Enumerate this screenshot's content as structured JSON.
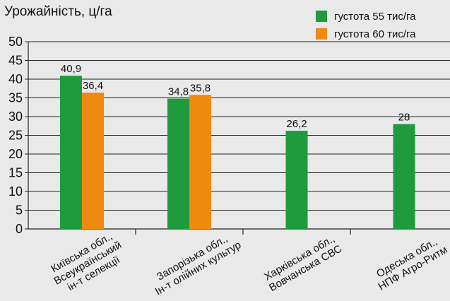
{
  "chart_data": {
    "type": "bar",
    "ylabel": "Урожайність, ц/га",
    "ylim": [
      0,
      50
    ],
    "yticks": [
      0,
      5,
      10,
      15,
      20,
      25,
      30,
      35,
      40,
      45,
      50
    ],
    "grid": true,
    "legend_position": "top-right",
    "categories": [
      [
        "Київська обл.,",
        "Всеукраїнський",
        "ін-т селекції"
      ],
      [
        "Запорізька обл.,",
        "Ін-т олійних культур"
      ],
      [
        "Харківська обл.,",
        "Вовчанська СВС"
      ],
      [
        "Одеська обл.,",
        "НПФ Агро-Ритм"
      ]
    ],
    "series": [
      {
        "name": "густота 55 тис/га",
        "color": "#1f9a3c",
        "values": [
          40.9,
          34.8,
          26.2,
          28
        ],
        "labels": [
          "40,9",
          "34,8",
          "26,2",
          "28"
        ]
      },
      {
        "name": "густота 60 тис/га",
        "color": "#ef8a10",
        "values": [
          36.4,
          35.8,
          null,
          null
        ],
        "labels": [
          "36,4",
          "35,8",
          "",
          ""
        ]
      }
    ]
  }
}
